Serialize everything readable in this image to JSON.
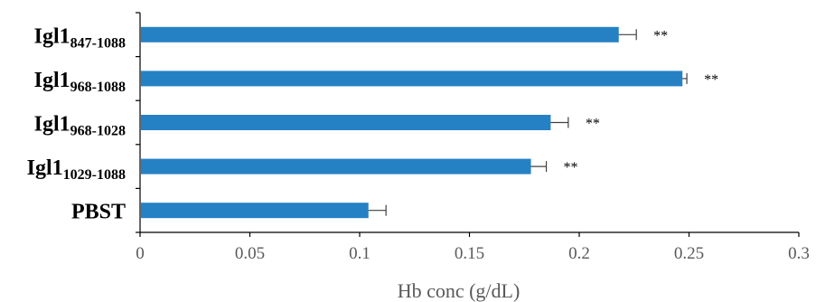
{
  "chart_data": {
    "type": "bar",
    "orientation": "horizontal",
    "categories": [
      {
        "main": "Igl1",
        "sub": "847-1088"
      },
      {
        "main": "Igl1",
        "sub": "968-1088"
      },
      {
        "main": "Igl1",
        "sub": "968-1028"
      },
      {
        "main": "Igl1",
        "sub": "1029-1088"
      },
      {
        "main": "PBST",
        "sub": ""
      }
    ],
    "values": [
      0.218,
      0.247,
      0.187,
      0.178,
      0.104
    ],
    "errors": [
      0.008,
      0.002,
      0.008,
      0.007,
      0.008
    ],
    "annotations": [
      "**",
      "**",
      "**",
      "**",
      ""
    ],
    "xlabel": "Hb conc (g/dL)",
    "ylabel": "",
    "xlim": [
      0,
      0.3
    ],
    "xticks": [
      "0",
      "0.05",
      "0.1",
      "0.15",
      "0.2",
      "0.25",
      "0.3"
    ],
    "grid": false,
    "bar_color": "#2581c4"
  }
}
